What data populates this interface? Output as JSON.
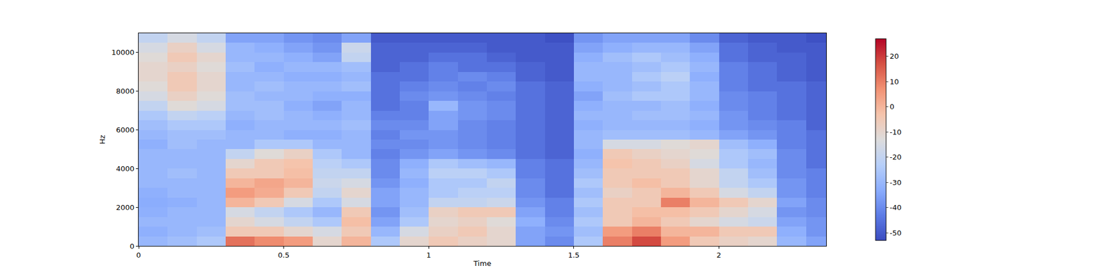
{
  "chart_data": {
    "type": "heatmap",
    "x_label": "Time",
    "y_label": "Hz",
    "x": [
      0.05,
      0.15,
      0.25,
      0.35,
      0.45,
      0.55,
      0.65,
      0.75,
      0.85,
      0.95,
      1.05,
      1.15,
      1.25,
      1.35,
      1.45,
      1.55,
      1.65,
      1.75,
      1.85,
      1.95,
      2.05,
      2.15,
      2.25,
      2.35
    ],
    "y": [
      250,
      750,
      1250,
      1750,
      2250,
      2750,
      3250,
      3750,
      4250,
      4750,
      5250,
      5750,
      6250,
      6750,
      7250,
      7750,
      8250,
      8750,
      9250,
      9750,
      10250,
      10750
    ],
    "cells": [
      [
        -30,
        -32,
        -30,
        -32,
        -33,
        -32,
        -30,
        -30,
        -30,
        -30,
        -32,
        -30,
        -28,
        -25,
        -20,
        -15,
        -12,
        -10,
        -10,
        -12,
        -15,
        -20
      ],
      [
        -28,
        -30,
        -30,
        -30,
        -32,
        -30,
        -30,
        -28,
        -30,
        -30,
        -28,
        -28,
        -25,
        -20,
        -12,
        -8,
        -5,
        -5,
        -8,
        -5,
        -8,
        -15
      ],
      [
        -25,
        -28,
        -30,
        -30,
        -30,
        -30,
        -30,
        -30,
        -30,
        -30,
        -30,
        -28,
        -25,
        -22,
        -15,
        -12,
        -10,
        -10,
        -12,
        -10,
        -15,
        -20
      ],
      [
        12,
        -5,
        -10,
        -15,
        0,
        5,
        0,
        -5,
        -10,
        -20,
        -30,
        -30,
        -32,
        -30,
        -28,
        -28,
        -30,
        -30,
        -28,
        -30,
        -30,
        -35
      ],
      [
        8,
        -5,
        -15,
        -20,
        -5,
        2,
        3,
        -5,
        -5,
        -12,
        -25,
        -30,
        -30,
        -28,
        -28,
        -30,
        -28,
        -30,
        -32,
        -30,
        -32,
        -35
      ],
      [
        5,
        -10,
        -20,
        -25,
        -15,
        -5,
        0,
        -2,
        -3,
        -8,
        -25,
        -32,
        -30,
        -30,
        -32,
        -30,
        -30,
        -32,
        -30,
        -32,
        -35,
        -38
      ],
      [
        -10,
        -15,
        -25,
        -30,
        -25,
        -20,
        -18,
        -20,
        -22,
        -25,
        -30,
        -32,
        -30,
        -32,
        -35,
        -32,
        -30,
        -32,
        -30,
        -35,
        -38,
        -40
      ],
      [
        0,
        -5,
        -2,
        -5,
        -15,
        -10,
        -15,
        -20,
        -25,
        -30,
        -30,
        -30,
        -28,
        -30,
        -30,
        -32,
        -28,
        -30,
        -28,
        -20,
        -18,
        -35
      ],
      [
        -25,
        -30,
        -35,
        -38,
        -35,
        -35,
        -38,
        -40,
        -40,
        -42,
        -40,
        -42,
        -40,
        -42,
        -45,
        -45,
        -45,
        -45,
        -48,
        -48,
        -48,
        -50
      ],
      [
        -10,
        -15,
        -25,
        -28,
        -30,
        -30,
        -32,
        -30,
        -32,
        -38,
        -40,
        -38,
        -40,
        -42,
        -42,
        -40,
        -42,
        -45,
        -45,
        -48,
        -48,
        -50
      ],
      [
        -5,
        -8,
        -10,
        -8,
        -20,
        -25,
        -25,
        -22,
        -25,
        -35,
        -38,
        -38,
        -35,
        -35,
        -30,
        -38,
        -40,
        -42,
        -42,
        -45,
        -48,
        -50
      ],
      [
        -8,
        -5,
        -8,
        -5,
        -20,
        -22,
        -25,
        -22,
        -28,
        -38,
        -40,
        -40,
        -40,
        -38,
        -38,
        -40,
        -42,
        -40,
        -45,
        -45,
        -48,
        -50
      ],
      [
        -10,
        -10,
        -12,
        -5,
        -18,
        -22,
        -20,
        -25,
        -30,
        -40,
        -42,
        -42,
        -42,
        -40,
        -40,
        -42,
        -40,
        -42,
        -45,
        -48,
        -50,
        -50
      ],
      [
        -35,
        -35,
        -32,
        -35,
        -38,
        -40,
        -40,
        -42,
        -42,
        -45,
        -45,
        -45,
        -45,
        -45,
        -45,
        -45,
        -45,
        -48,
        -48,
        -50,
        -50,
        -50
      ],
      [
        -40,
        -38,
        -40,
        -42,
        -42,
        -45,
        -45,
        -45,
        -45,
        -48,
        -48,
        -48,
        -48,
        -48,
        -48,
        -48,
        -48,
        -50,
        -50,
        -50,
        -50,
        -52
      ],
      [
        -25,
        -28,
        -25,
        -28,
        -25,
        -28,
        -25,
        -28,
        -30,
        -32,
        -30,
        -30,
        -32,
        -30,
        -32,
        -35,
        -32,
        -30,
        -30,
        -32,
        -35,
        -38
      ],
      [
        10,
        5,
        -5,
        -5,
        -5,
        -8,
        -5,
        -5,
        -3,
        -5,
        -15,
        -28,
        -30,
        -30,
        -30,
        -28,
        -30,
        -30,
        -30,
        -28,
        -32,
        -35
      ],
      [
        18,
        10,
        0,
        -2,
        -5,
        -5,
        -2,
        -5,
        -5,
        -8,
        -15,
        -28,
        -30,
        -28,
        -30,
        -25,
        -28,
        -25,
        -28,
        -25,
        -30,
        -35
      ],
      [
        5,
        0,
        -5,
        -2,
        10,
        0,
        -5,
        -5,
        -8,
        -10,
        -12,
        -28,
        -30,
        -28,
        -28,
        -25,
        -25,
        -22,
        -25,
        -28,
        -30,
        -35
      ],
      [
        -5,
        0,
        -10,
        -5,
        0,
        -5,
        -10,
        -10,
        -15,
        -12,
        -10,
        -30,
        -32,
        -30,
        -32,
        -30,
        -30,
        -32,
        -30,
        -32,
        -35,
        -40
      ],
      [
        -8,
        -5,
        -15,
        -10,
        -5,
        -15,
        -20,
        -20,
        -25,
        -25,
        -28,
        -35,
        -38,
        -38,
        -40,
        -40,
        -42,
        -42,
        -42,
        -45,
        -45,
        -48
      ],
      [
        -10,
        -5,
        -18,
        -15,
        -10,
        -20,
        -25,
        -28,
        -30,
        -28,
        -32,
        -38,
        -40,
        -42,
        -42,
        -42,
        -45,
        -45,
        -45,
        -48,
        -48,
        -50
      ],
      [
        -30,
        -32,
        -35,
        -38,
        -35,
        -38,
        -38,
        -40,
        -40,
        -40,
        -42,
        -42,
        -42,
        -45,
        -45,
        -45,
        -45,
        -48,
        -48,
        -48,
        -50,
        -50
      ],
      [
        -35,
        -38,
        -38,
        -40,
        -40,
        -42,
        -42,
        -42,
        -45,
        -45,
        -45,
        -45,
        -48,
        -48,
        -48,
        -48,
        -48,
        -50,
        -50,
        -50,
        -50,
        -52
      ]
    ],
    "xlim": [
      0,
      2.37
    ],
    "xticks": [
      0,
      0.5,
      1,
      1.5,
      2
    ],
    "ylim": [
      0,
      11000
    ],
    "yticks": [
      0,
      2000,
      4000,
      6000,
      8000,
      10000
    ],
    "colorbar": {
      "range": [
        -53,
        27
      ],
      "ticks": [
        -50,
        -40,
        -30,
        -20,
        -10,
        0,
        10,
        20
      ]
    }
  }
}
